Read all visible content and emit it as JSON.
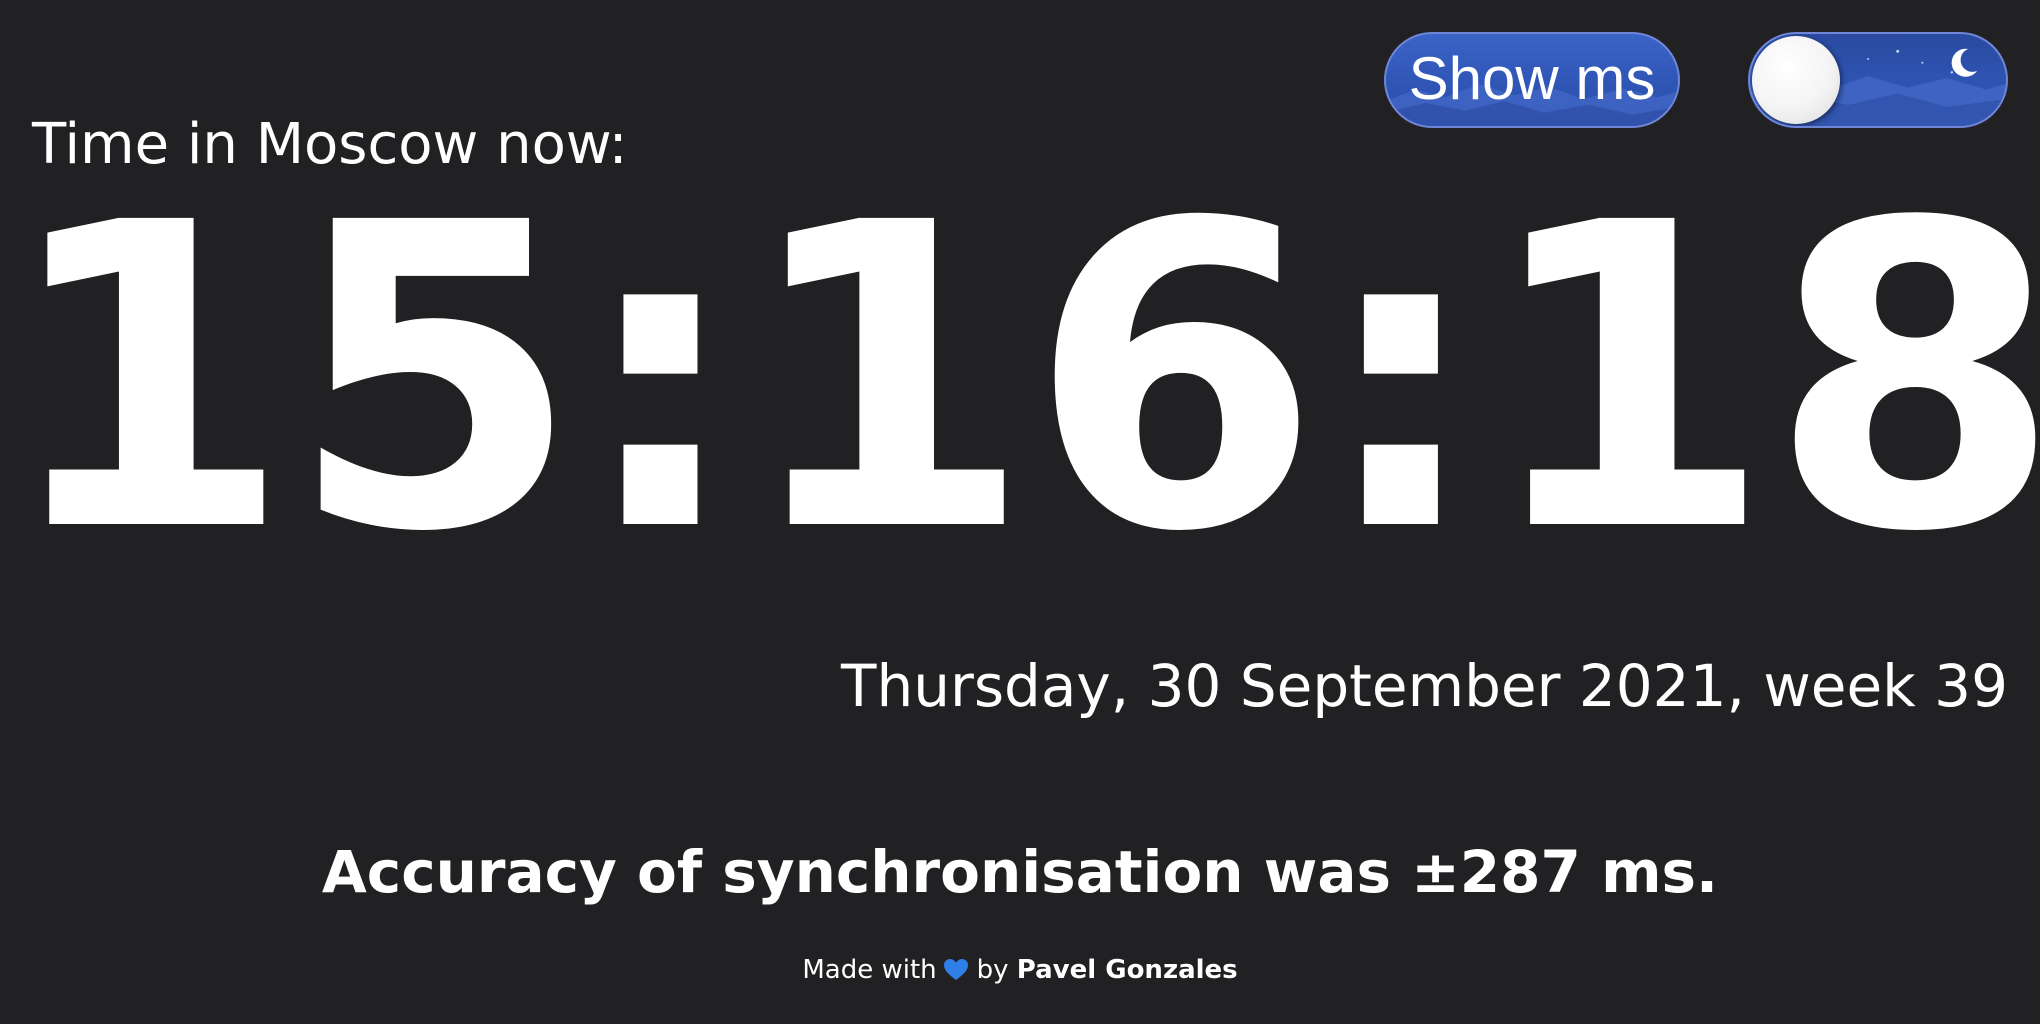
{
  "controls": {
    "show_ms_label": "Show ms",
    "theme_toggle": {
      "state": "night",
      "icon": "moon-icon"
    }
  },
  "location_label": "Time in Moscow now:",
  "clock": {
    "time": "15:16:18"
  },
  "date_line": "Thursday, 30 September 2021, week 39",
  "accuracy_line": "Accuracy of synchronisation was ±287 ms.",
  "credit": {
    "prefix": "Made with",
    "icon": "heart-icon",
    "by": "by",
    "author": "Pavel Gonzales"
  },
  "colors": {
    "background": "#212123",
    "text": "#ffffff",
    "button_blue": "#2f55b5",
    "heart": "#2f7fe8"
  }
}
